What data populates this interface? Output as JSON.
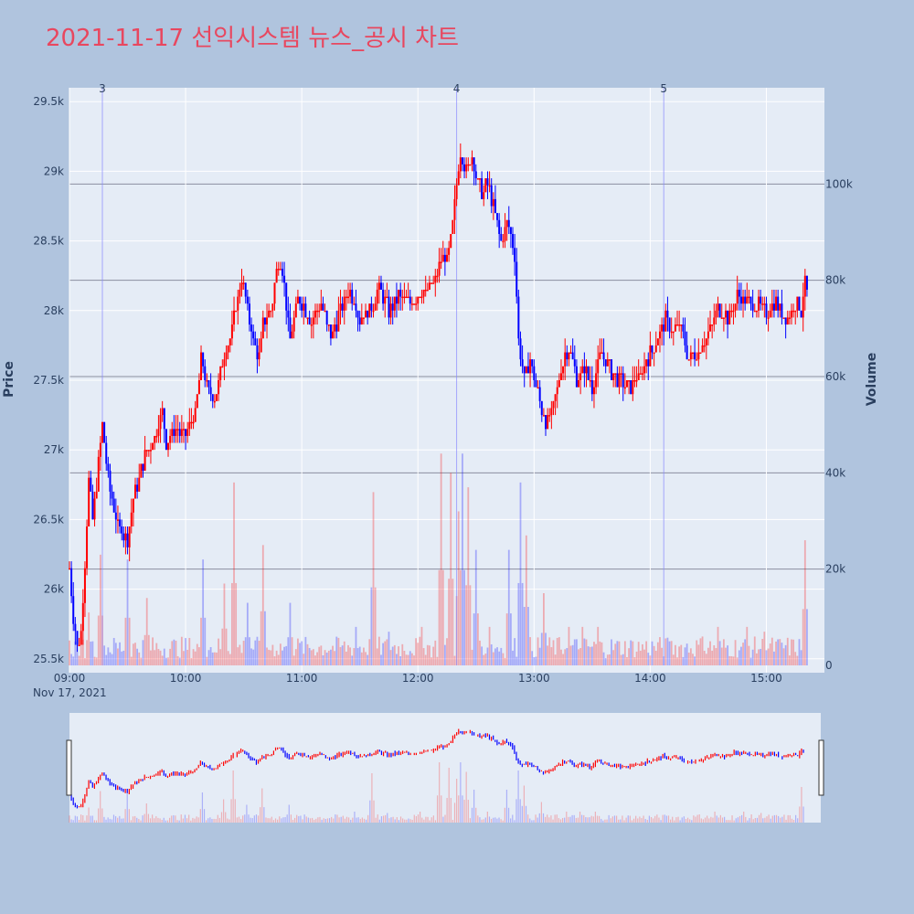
{
  "chart_data": {
    "type": "candlestick",
    "title": "2021-11-17 선익시스템 뉴스_공시 차트",
    "title_color": "#e8475f",
    "background": "#b0c4de",
    "plot_background": "#e5ecf6",
    "up_color": "#ff0000",
    "down_color": "#0000ff",
    "ylabel": "Price",
    "y2label": "Volume",
    "ylim": [
      25400,
      29600
    ],
    "y2lim": [
      0,
      120000
    ],
    "y_ticks": [
      25500,
      26000,
      26500,
      27000,
      27500,
      28000,
      28500,
      29000,
      29500
    ],
    "y_tick_labels": [
      "25.5k",
      "26k",
      "26.5k",
      "27k",
      "27.5k",
      "28k",
      "28.5k",
      "29k",
      "29.5k"
    ],
    "y2_ticks": [
      0,
      20000,
      40000,
      60000,
      80000,
      100000
    ],
    "y2_tick_labels": [
      "0",
      "20k",
      "40k",
      "60k",
      "80k",
      "100k"
    ],
    "x_range": [
      "09:00",
      "15:30"
    ],
    "x_ticks": [
      "09:00",
      "10:00",
      "11:00",
      "12:00",
      "13:00",
      "14:00",
      "15:00"
    ],
    "x_date_label": "Nov 17, 2021",
    "news_markers": [
      {
        "label": "3",
        "time": "09:17"
      },
      {
        "label": "4",
        "time": "12:20"
      },
      {
        "label": "5",
        "time": "14:07"
      }
    ],
    "price_path": [
      [
        "09:00",
        26150
      ],
      [
        "09:02",
        25800
      ],
      [
        "09:04",
        25600
      ],
      [
        "09:06",
        25700
      ],
      [
        "09:08",
        26200
      ],
      [
        "09:10",
        26800
      ],
      [
        "09:12",
        26500
      ],
      [
        "09:15",
        26900
      ],
      [
        "09:17",
        27200
      ],
      [
        "09:20",
        26800
      ],
      [
        "09:24",
        26500
      ],
      [
        "09:28",
        26400
      ],
      [
        "09:30",
        26350
      ],
      [
        "09:33",
        26650
      ],
      [
        "09:36",
        26800
      ],
      [
        "09:40",
        27000
      ],
      [
        "09:44",
        27100
      ],
      [
        "09:48",
        27300
      ],
      [
        "09:50",
        27050
      ],
      [
        "09:55",
        27150
      ],
      [
        "10:00",
        27100
      ],
      [
        "10:05",
        27250
      ],
      [
        "10:08",
        27650
      ],
      [
        "10:12",
        27400
      ],
      [
        "10:15",
        27350
      ],
      [
        "10:20",
        27700
      ],
      [
        "10:24",
        27850
      ],
      [
        "10:27",
        28100
      ],
      [
        "10:29",
        28250
      ],
      [
        "10:32",
        28000
      ],
      [
        "10:35",
        27800
      ],
      [
        "10:38",
        27650
      ],
      [
        "10:40",
        27900
      ],
      [
        "10:44",
        28000
      ],
      [
        "10:48",
        28350
      ],
      [
        "10:50",
        28300
      ],
      [
        "10:54",
        27800
      ],
      [
        "10:58",
        28100
      ],
      [
        "11:02",
        28000
      ],
      [
        "11:05",
        27900
      ],
      [
        "11:10",
        28050
      ],
      [
        "11:15",
        27800
      ],
      [
        "11:20",
        28000
      ],
      [
        "11:25",
        28150
      ],
      [
        "11:30",
        27950
      ],
      [
        "11:35",
        28000
      ],
      [
        "11:40",
        28150
      ],
      [
        "11:45",
        28000
      ],
      [
        "11:50",
        28100
      ],
      [
        "11:55",
        28050
      ],
      [
        "12:00",
        28100
      ],
      [
        "12:05",
        28150
      ],
      [
        "12:10",
        28250
      ],
      [
        "12:13",
        28400
      ],
      [
        "12:15",
        28350
      ],
      [
        "12:18",
        28600
      ],
      [
        "12:20",
        28900
      ],
      [
        "12:22",
        29150
      ],
      [
        "12:25",
        29000
      ],
      [
        "12:28",
        29100
      ],
      [
        "12:30",
        28950
      ],
      [
        "12:33",
        28850
      ],
      [
        "12:36",
        28900
      ],
      [
        "12:40",
        28700
      ],
      [
        "12:43",
        28500
      ],
      [
        "12:46",
        28650
      ],
      [
        "12:50",
        28400
      ],
      [
        "12:52",
        27800
      ],
      [
        "12:55",
        27500
      ],
      [
        "12:58",
        27650
      ],
      [
        "13:02",
        27400
      ],
      [
        "13:06",
        27200
      ],
      [
        "13:10",
        27300
      ],
      [
        "13:14",
        27600
      ],
      [
        "13:18",
        27750
      ],
      [
        "13:22",
        27500
      ],
      [
        "13:26",
        27600
      ],
      [
        "13:30",
        27450
      ],
      [
        "13:35",
        27700
      ],
      [
        "13:40",
        27550
      ],
      [
        "13:45",
        27500
      ],
      [
        "13:50",
        27450
      ],
      [
        "13:55",
        27550
      ],
      [
        "14:00",
        27700
      ],
      [
        "14:04",
        27800
      ],
      [
        "14:08",
        27950
      ],
      [
        "14:12",
        27850
      ],
      [
        "14:15",
        27900
      ],
      [
        "14:20",
        27650
      ],
      [
        "14:25",
        27700
      ],
      [
        "14:30",
        27850
      ],
      [
        "14:35",
        28000
      ],
      [
        "14:40",
        27950
      ],
      [
        "14:45",
        28100
      ],
      [
        "14:50",
        28050
      ],
      [
        "14:55",
        28050
      ],
      [
        "15:00",
        28000
      ],
      [
        "15:05",
        28050
      ],
      [
        "15:10",
        27950
      ],
      [
        "15:15",
        28050
      ],
      [
        "15:18",
        28000
      ],
      [
        "15:20",
        28200
      ],
      [
        "15:21",
        28150
      ]
    ],
    "volume_peaks": [
      [
        "09:10",
        11000
      ],
      [
        "09:16",
        23000
      ],
      [
        "09:30",
        22000
      ],
      [
        "09:40",
        14000
      ],
      [
        "10:09",
        22000
      ],
      [
        "10:20",
        17000
      ],
      [
        "10:25",
        38000
      ],
      [
        "10:32",
        13000
      ],
      [
        "10:40",
        25000
      ],
      [
        "10:54",
        13000
      ],
      [
        "11:28",
        8000
      ],
      [
        "11:37",
        36000
      ],
      [
        "11:45",
        7000
      ],
      [
        "12:02",
        8000
      ],
      [
        "12:12",
        44000
      ],
      [
        "12:17",
        40000
      ],
      [
        "12:21",
        32000
      ],
      [
        "12:23",
        44000
      ],
      [
        "12:26",
        37000
      ],
      [
        "12:30",
        24000
      ],
      [
        "12:37",
        8000
      ],
      [
        "12:47",
        24000
      ],
      [
        "12:53",
        38000
      ],
      [
        "12:56",
        27000
      ],
      [
        "13:05",
        15000
      ],
      [
        "13:18",
        8000
      ],
      [
        "13:25",
        8000
      ],
      [
        "13:33",
        8000
      ],
      [
        "14:10",
        5000
      ],
      [
        "14:27",
        6000
      ],
      [
        "14:35",
        8000
      ],
      [
        "14:50",
        8000
      ],
      [
        "14:59",
        7000
      ],
      [
        "15:20",
        26000
      ]
    ]
  }
}
